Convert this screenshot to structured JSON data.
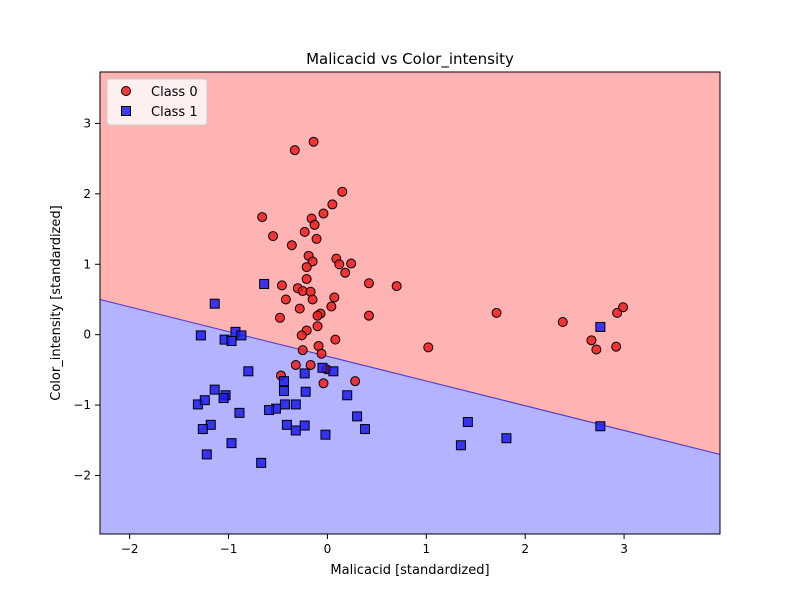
{
  "chart_data": {
    "type": "scatter",
    "title": "Malicacid vs Color_intensity",
    "xlabel": "Malicacid [standardized]",
    "ylabel": "Color_intensity [standardized]",
    "xlim": [
      -2.3,
      3.97
    ],
    "ylim": [
      -2.83,
      3.73
    ],
    "xticks": [
      -2,
      -1,
      0,
      1,
      2,
      3
    ],
    "yticks": [
      -2,
      -1,
      0,
      1,
      2,
      3
    ],
    "grid": false,
    "legend_position": "upper-left",
    "decision_boundary": {
      "x": [
        -2.3,
        3.97
      ],
      "y": [
        0.5,
        -1.7
      ],
      "above_label": "Class 0",
      "below_label": "Class 1"
    },
    "region_colors": {
      "Class 0": "#ffb3b3",
      "Class 1": "#b3b3ff",
      "boundary": "#4b32c8"
    },
    "series": [
      {
        "name": "Class 0",
        "marker": "circle",
        "color": "#ee1c1c",
        "points": [
          [
            -0.33,
            2.62
          ],
          [
            -0.14,
            2.74
          ],
          [
            0.15,
            2.03
          ],
          [
            -0.66,
            1.67
          ],
          [
            0.05,
            1.85
          ],
          [
            -0.16,
            1.65
          ],
          [
            -0.04,
            1.72
          ],
          [
            -0.13,
            1.56
          ],
          [
            -0.55,
            1.4
          ],
          [
            -0.23,
            1.46
          ],
          [
            -0.36,
            1.27
          ],
          [
            -0.11,
            1.36
          ],
          [
            -0.19,
            1.12
          ],
          [
            0.09,
            1.08
          ],
          [
            0.24,
            1.01
          ],
          [
            0.12,
            1.0
          ],
          [
            -0.15,
            1.04
          ],
          [
            -0.21,
            0.96
          ],
          [
            0.18,
            0.88
          ],
          [
            -0.21,
            0.79
          ],
          [
            0.42,
            0.73
          ],
          [
            0.7,
            0.69
          ],
          [
            -0.46,
            0.7
          ],
          [
            -0.3,
            0.66
          ],
          [
            -0.25,
            0.62
          ],
          [
            -0.17,
            0.61
          ],
          [
            -0.42,
            0.5
          ],
          [
            -0.15,
            0.5
          ],
          [
            0.07,
            0.53
          ],
          [
            0.04,
            0.4
          ],
          [
            -0.28,
            0.37
          ],
          [
            -0.07,
            0.3
          ],
          [
            -0.1,
            0.27
          ],
          [
            -0.48,
            0.24
          ],
          [
            0.42,
            0.27
          ],
          [
            -0.1,
            0.12
          ],
          [
            -0.21,
            0.06
          ],
          [
            -0.26,
            -0.01
          ],
          [
            0.08,
            -0.07
          ],
          [
            -0.09,
            -0.16
          ],
          [
            -0.25,
            -0.22
          ],
          [
            -0.06,
            -0.27
          ],
          [
            -0.32,
            -0.43
          ],
          [
            -0.17,
            -0.43
          ],
          [
            -0.01,
            -0.49
          ],
          [
            -0.47,
            -0.58
          ],
          [
            0.28,
            -0.66
          ],
          [
            -0.04,
            -0.69
          ],
          [
            1.02,
            -0.18
          ],
          [
            1.71,
            0.31
          ],
          [
            2.38,
            0.18
          ],
          [
            2.67,
            -0.08
          ],
          [
            2.72,
            -0.21
          ],
          [
            2.92,
            -0.17
          ],
          [
            2.93,
            0.31
          ],
          [
            2.99,
            0.39
          ]
        ]
      },
      {
        "name": "Class 1",
        "marker": "square",
        "color": "#1c1cee",
        "points": [
          [
            -1.14,
            0.44
          ],
          [
            -0.64,
            0.72
          ],
          [
            -1.28,
            -0.01
          ],
          [
            -0.93,
            0.04
          ],
          [
            -1.04,
            -0.07
          ],
          [
            -0.97,
            -0.09
          ],
          [
            -0.87,
            -0.01
          ],
          [
            -0.8,
            -0.52
          ],
          [
            -1.14,
            -0.78
          ],
          [
            -1.03,
            -0.86
          ],
          [
            -1.05,
            -0.9
          ],
          [
            -1.31,
            -0.99
          ],
          [
            -1.24,
            -0.93
          ],
          [
            -0.89,
            -1.11
          ],
          [
            -0.52,
            -1.05
          ],
          [
            -0.59,
            -1.07
          ],
          [
            -1.18,
            -1.28
          ],
          [
            -1.26,
            -1.34
          ],
          [
            -0.97,
            -1.54
          ],
          [
            -1.22,
            -1.7
          ],
          [
            -0.67,
            -1.82
          ],
          [
            -0.44,
            -0.66
          ],
          [
            -0.44,
            -0.8
          ],
          [
            -0.43,
            -0.99
          ],
          [
            -0.32,
            -0.99
          ],
          [
            -0.41,
            -1.28
          ],
          [
            -0.32,
            -1.36
          ],
          [
            -0.23,
            -1.29
          ],
          [
            -0.23,
            -0.55
          ],
          [
            -0.22,
            -0.81
          ],
          [
            0.06,
            -0.52
          ],
          [
            -0.05,
            -0.47
          ],
          [
            0.2,
            -0.86
          ],
          [
            0.3,
            -1.16
          ],
          [
            0.38,
            -1.34
          ],
          [
            -0.02,
            -1.42
          ],
          [
            1.35,
            -1.57
          ],
          [
            1.42,
            -1.24
          ],
          [
            1.81,
            -1.47
          ],
          [
            2.76,
            0.11
          ],
          [
            2.76,
            -1.3
          ]
        ]
      }
    ]
  }
}
